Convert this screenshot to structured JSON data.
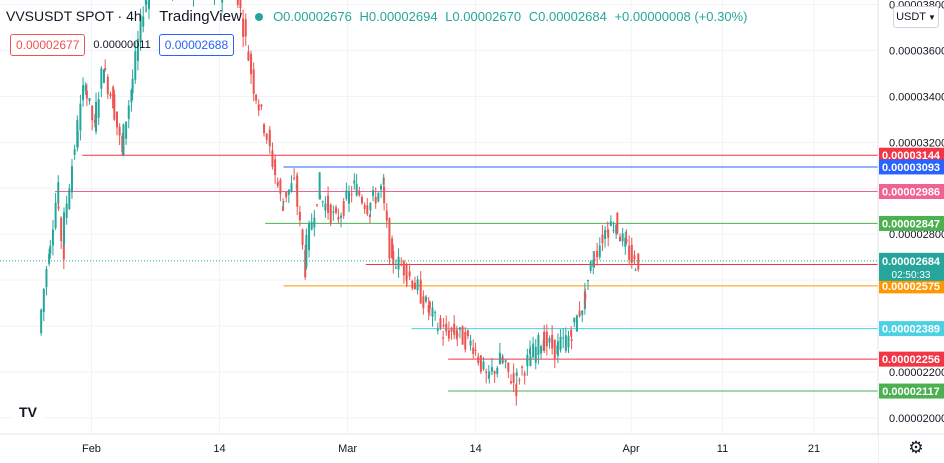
{
  "header": {
    "symbol": "VVSUSDT SPOT · 4h",
    "platform": "TradingView",
    "ohlc": [
      "O0.00002676",
      "H0.00002694",
      "L0.00002670",
      "C0.00002684",
      "+0.00000008 (+0.30%)"
    ]
  },
  "order_boxes": {
    "sell": "0.00002677",
    "spread": "0.00000011",
    "buy": "0.00002688"
  },
  "currency_selector": "USDT",
  "settings_icon": "gear-icon",
  "logo_icon": "tradingview-logo-icon",
  "colors": {
    "up": "#26a69a",
    "down": "#ef5350",
    "red_line": "#f23645",
    "blue_line": "#2962ff",
    "pink": "#f06292",
    "green_line": "#4caf50",
    "orange": "#ff9800",
    "cyan": "#4dd0e1"
  },
  "chart_data": {
    "type": "candlestick",
    "y_ticks": [
      "0.00002000",
      "0.00002200",
      "0.00002400",
      "0.00002600",
      "0.00002800",
      "0.00003000",
      "0.00003200",
      "0.00003400",
      "0.00003600",
      "0.00003800"
    ],
    "x_ticks": [
      "Feb",
      "14",
      "Mar",
      "14",
      "Apr",
      "11",
      "21"
    ],
    "x_tick_dates": [
      0,
      14,
      28,
      42,
      59,
      69,
      79
    ],
    "ylim": [
      1.93e-05,
      3.82e-05
    ],
    "xlim": [
      -10,
      86
    ],
    "current_price": {
      "value": 2.684e-05,
      "label": "0.00002684",
      "countdown": "02:50:33"
    },
    "levels": [
      {
        "value": 3.144e-05,
        "label": "0.00003144",
        "color": "#f23645",
        "from": -1
      },
      {
        "value": 3.093e-05,
        "label": "0.00003093",
        "color": "#2962ff",
        "from": 21
      },
      {
        "value": 2.986e-05,
        "label": "0.00002986",
        "color": "#f06292",
        "from": -4
      },
      {
        "value": 2.847e-05,
        "label": "0.00002847",
        "color": "#4caf50",
        "from": 19
      },
      {
        "value": 2.668e-05,
        "label": "0.00002668",
        "color": "#f23645",
        "from": 30
      },
      {
        "value": 2.575e-05,
        "label": "0.00002575",
        "color": "#ff9800",
        "from": 21
      },
      {
        "value": 2.389e-05,
        "label": "0.00002389",
        "color": "#4dd0e1",
        "from": 35
      },
      {
        "value": 2.256e-05,
        "label": "0.00002256",
        "color": "#f23645",
        "from": 39
      },
      {
        "value": 2.117e-05,
        "label": "0.00002117",
        "color": "#4caf50",
        "from": 39
      }
    ],
    "price_path": [
      [
        -5.5,
        2.37e-05
      ],
      [
        -4.5,
        2.7e-05
      ],
      [
        -3.6,
        2.95e-05
      ],
      [
        -3.0,
        2.78e-05
      ],
      [
        -1.5,
        3.2e-05
      ],
      [
        -0.5,
        3.45e-05
      ],
      [
        0.5,
        3.28e-05
      ],
      [
        1.5,
        3.52e-05
      ],
      [
        2.5,
        3.4e-05
      ],
      [
        3.5,
        3.18e-05
      ],
      [
        4.5,
        3.4e-05
      ],
      [
        6,
        3.8e-05
      ],
      [
        8,
        3.95e-05
      ],
      [
        10,
        3.85e-05
      ],
      [
        12,
        3.88e-05
      ],
      [
        14,
        3.84e-05
      ],
      [
        16,
        3.9e-05
      ],
      [
        18,
        3.45e-05
      ],
      [
        19.5,
        3.22e-05
      ],
      [
        21,
        2.95e-05
      ],
      [
        22.5,
        3.02e-05
      ],
      [
        23.5,
        2.7e-05
      ],
      [
        25,
        2.98e-05
      ],
      [
        27,
        2.86e-05
      ],
      [
        29,
        3.01e-05
      ],
      [
        30.5,
        2.92e-05
      ],
      [
        32,
        3e-05
      ],
      [
        33,
        2.7e-05
      ],
      [
        34.5,
        2.65e-05
      ],
      [
        36,
        2.56e-05
      ],
      [
        37,
        2.48e-05
      ],
      [
        38.5,
        2.38e-05
      ],
      [
        40,
        2.37e-05
      ],
      [
        42,
        2.32e-05
      ],
      [
        43.5,
        2.17e-05
      ],
      [
        45,
        2.25e-05
      ],
      [
        46.5,
        2.15e-05
      ],
      [
        48,
        2.25e-05
      ],
      [
        49.5,
        2.34e-05
      ],
      [
        51,
        2.3e-05
      ],
      [
        52.5,
        2.35e-05
      ],
      [
        54,
        2.5e-05
      ],
      [
        55,
        2.68e-05
      ],
      [
        56.5,
        2.82e-05
      ],
      [
        57.5,
        2.85e-05
      ],
      [
        58.5,
        2.76e-05
      ],
      [
        59.5,
        2.68e-05
      ],
      [
        60,
        2.68e-05
      ]
    ]
  }
}
